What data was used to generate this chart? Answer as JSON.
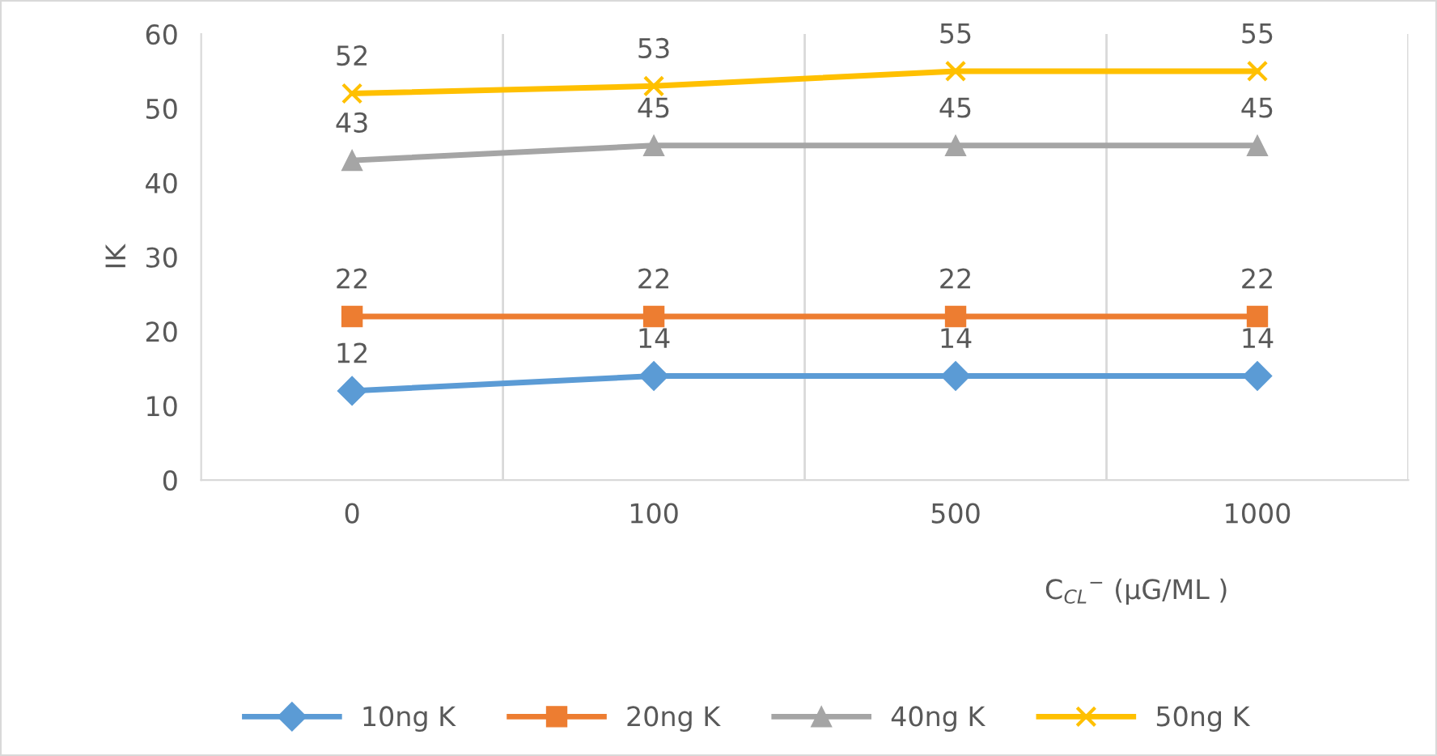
{
  "chart_data": {
    "type": "line",
    "ylabel": "IK",
    "xlabel": "C$_{CL}$$^{−}$ (μG/ML )",
    "categories": [
      "0",
      "100",
      "500",
      "1000"
    ],
    "series": [
      {
        "name": "10ng K",
        "color": "#5b9bd5",
        "marker": "diamond",
        "values": [
          12,
          14,
          14,
          14
        ]
      },
      {
        "name": "20ng K",
        "color": "#ed7d31",
        "marker": "square",
        "values": [
          22,
          22,
          22,
          22
        ]
      },
      {
        "name": "40ng K",
        "color": "#a5a5a5",
        "marker": "triangle",
        "values": [
          43,
          45,
          45,
          45
        ]
      },
      {
        "name": "50ng K",
        "color": "#ffc000",
        "marker": "cross",
        "values": [
          52,
          53,
          55,
          55
        ]
      }
    ],
    "ylim": [
      0,
      60
    ],
    "yticks": [
      0,
      10,
      20,
      30,
      40,
      50,
      60
    ],
    "grid": "x",
    "legend": "bottom",
    "data_labels": true
  }
}
